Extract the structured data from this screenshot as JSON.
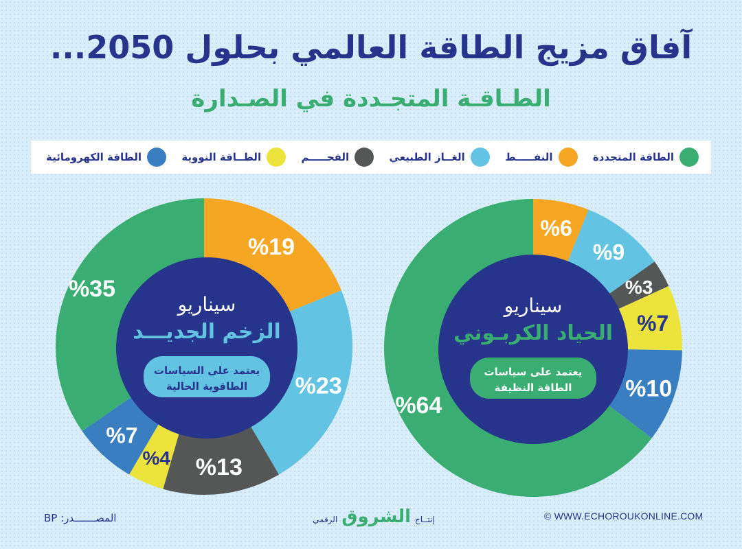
{
  "header": {
    "title": "آفاق مزيج الطاقة العالمي بحلول 2050...",
    "subtitle": "الطـاقـة المتجـددة في الصـدارة"
  },
  "legend": [
    {
      "key": "renewable",
      "label": "الطاقة المتجددة",
      "color": "#3aae72"
    },
    {
      "key": "oil",
      "label": "النفـــــط",
      "color": "#f5a623"
    },
    {
      "key": "gas",
      "label": "الغــاز الطبيعي",
      "color": "#62c3e3"
    },
    {
      "key": "coal",
      "label": "الفحـــــم",
      "color": "#555756"
    },
    {
      "key": "nuclear",
      "label": "الطــاقة النووية",
      "color": "#ece33c"
    },
    {
      "key": "hydro",
      "label": "الطاقة الكهرومائية",
      "color": "#3a7ec2"
    }
  ],
  "colors": {
    "navy": "#27348b",
    "green": "#3aae72",
    "light_blue": "#62c3e3",
    "white": "#ffffff"
  },
  "chart_data": [
    {
      "type": "pie",
      "donut": true,
      "title": "سيناريو الزخم الجديد",
      "scenario_label": "سيناريو",
      "scenario_name": "الزخم الجديـــد",
      "description_line1": "يعتمد على السياسات",
      "description_line2": "الطاقوية الحالية",
      "accent": "#62c3e3",
      "start": "12 o'clock, clockwise",
      "slices": [
        {
          "key": "oil",
          "label": "النفط",
          "value": 19,
          "text": "%19",
          "text_color": "#ffffff"
        },
        {
          "key": "gas",
          "label": "الغاز الطبيعي",
          "value": 23,
          "text": "%23",
          "text_color": "#ffffff"
        },
        {
          "key": "coal",
          "label": "الفحم",
          "value": 13,
          "text": "%13",
          "text_color": "#ffffff"
        },
        {
          "key": "nuclear",
          "label": "الطاقة النووية",
          "value": 4,
          "text": "%4",
          "text_color": "#27348b"
        },
        {
          "key": "hydro",
          "label": "الطاقة الكهرومائية",
          "value": 7,
          "text": "%7",
          "text_color": "#ffffff"
        },
        {
          "key": "renewable",
          "label": "الطاقة المتجددة",
          "value": 35,
          "text": "%35",
          "text_color": "#ffffff"
        }
      ]
    },
    {
      "type": "pie",
      "donut": true,
      "title": "سيناريو الحياد الكربوني",
      "scenario_label": "سيناريو",
      "scenario_name": "الحياد الكربـوني",
      "description_line1": "يعتمد على سياسات",
      "description_line2": "الطاقة النظيفة",
      "accent": "#3aae72",
      "start": "12 o'clock, clockwise",
      "slices": [
        {
          "key": "oil",
          "label": "النفط",
          "value": 6,
          "text": "%6",
          "text_color": "#ffffff"
        },
        {
          "key": "gas",
          "label": "الغاز الطبيعي",
          "value": 9,
          "text": "%9",
          "text_color": "#ffffff"
        },
        {
          "key": "coal",
          "label": "الفحم",
          "value": 3,
          "text": "%3",
          "text_color": "#ffffff"
        },
        {
          "key": "nuclear",
          "label": "الطاقة النووية",
          "value": 7,
          "text": "%7",
          "text_color": "#27348b"
        },
        {
          "key": "hydro",
          "label": "الطاقة الكهرومائية",
          "value": 10,
          "text": "%10",
          "text_color": "#ffffff"
        },
        {
          "key": "renewable",
          "label": "الطاقة المتجددة",
          "value": 64,
          "text": "%64",
          "text_color": "#ffffff"
        }
      ]
    }
  ],
  "footer": {
    "source": "المصـــــــدر: BP",
    "brand_prefix": "إنتــاج",
    "brand_logo": "الشروق",
    "brand_suffix": "الرقمي",
    "website": "© WWW.ECHOROUKONLINE.COM"
  }
}
